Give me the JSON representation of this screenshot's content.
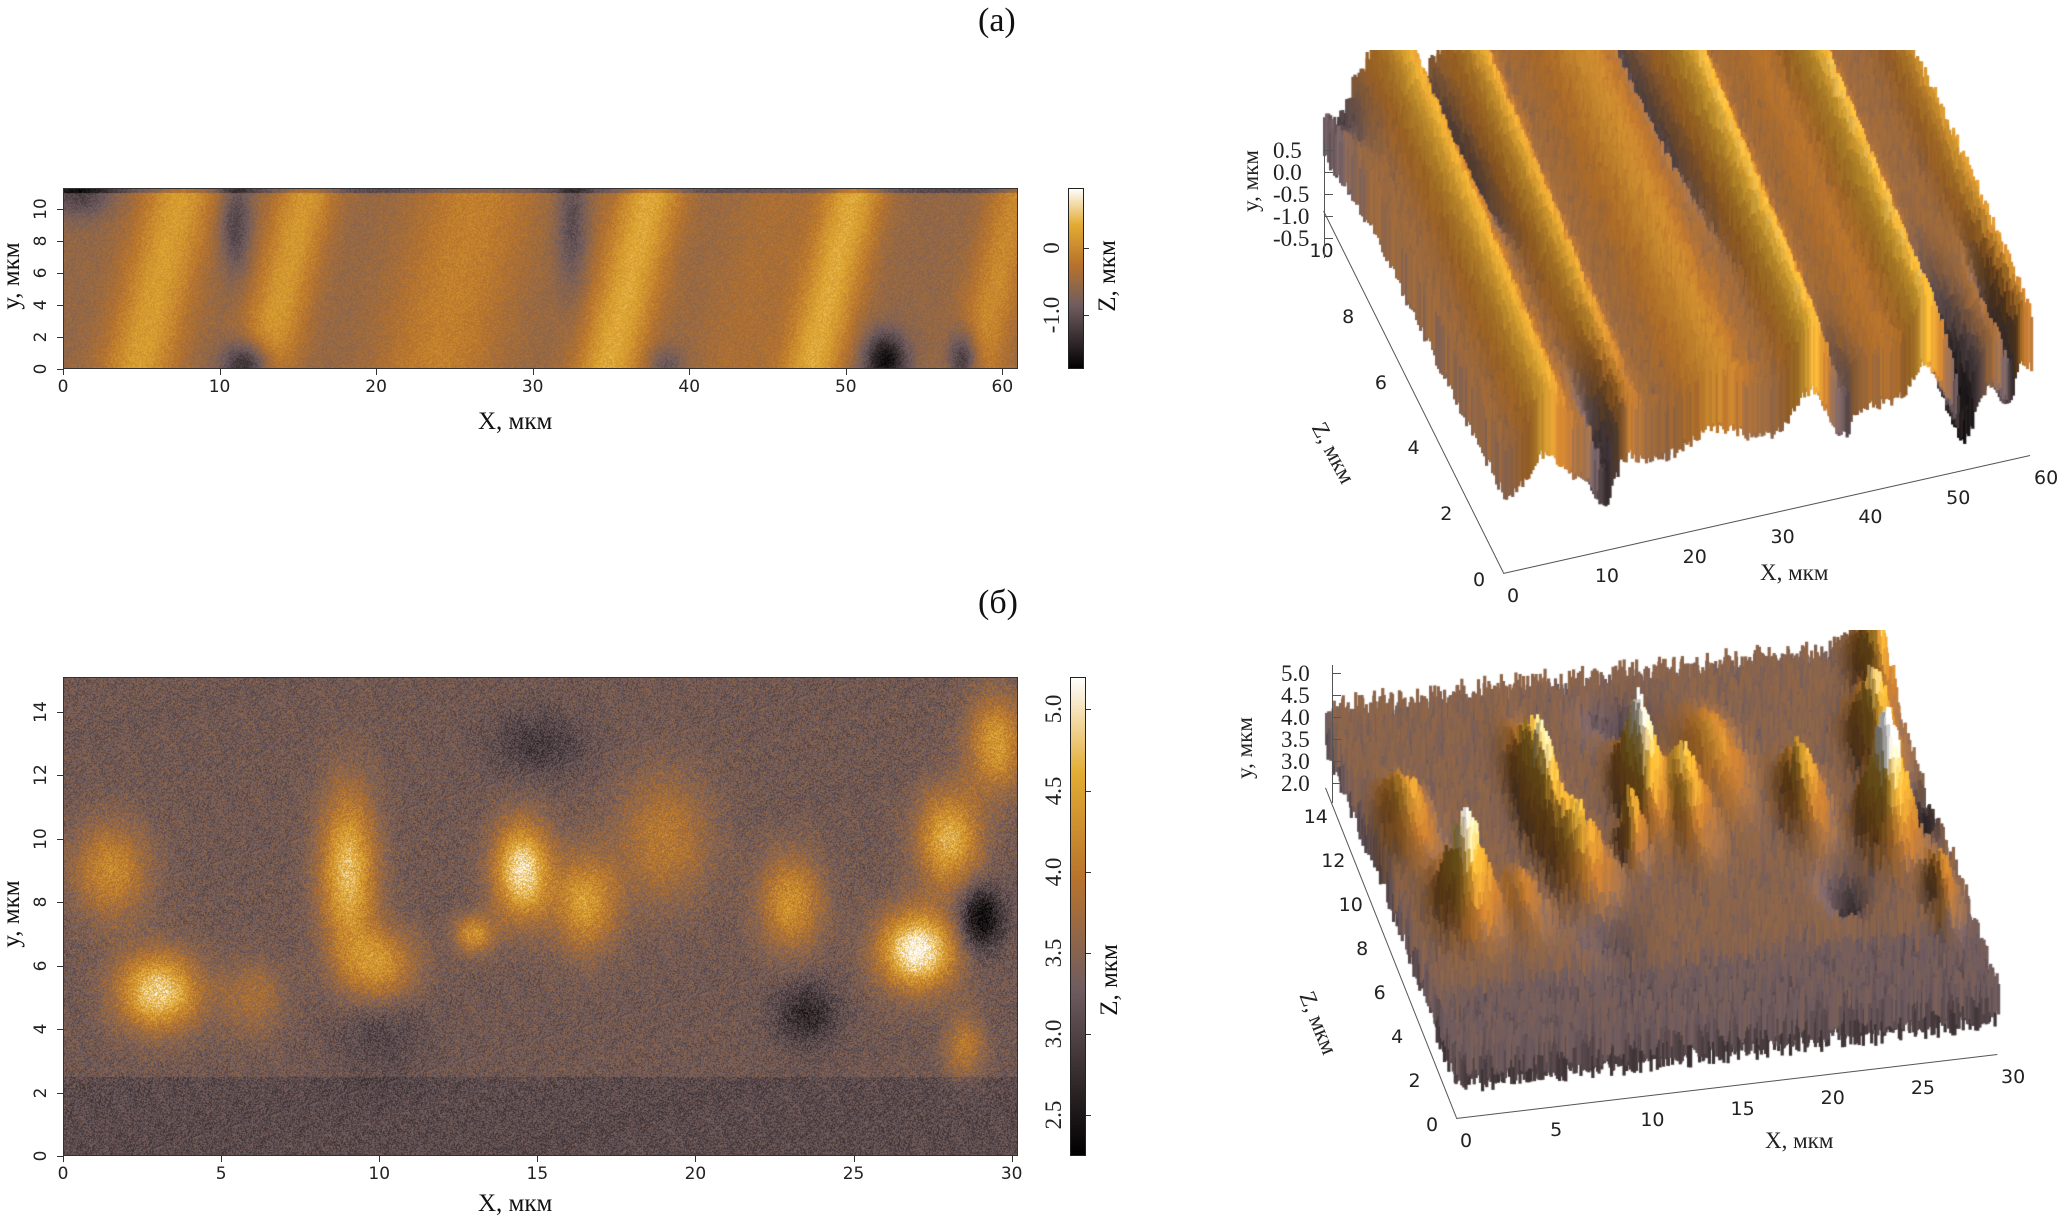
{
  "panels": {
    "a_label": "(а)",
    "b_label": "(б)"
  },
  "chart_data": [
    {
      "id": "a-map",
      "type": "heatmap",
      "xlabel": "X, мкм",
      "ylabel": "y, мкм",
      "colorbar_label": "Z, мкм",
      "xlim": [
        0,
        61
      ],
      "ylim": [
        0,
        11.3
      ],
      "xticks": [
        0,
        10,
        20,
        30,
        40,
        50,
        60
      ],
      "yticks": [
        0,
        2,
        4,
        6,
        8,
        10
      ],
      "colorbar_range": [
        -1.8,
        0.9
      ],
      "colorbar_ticks": [
        "0",
        "-1.0"
      ],
      "colorbar_tick_values": [
        0,
        -1.0
      ],
      "colormap": [
        "#000000",
        "#6f5c60",
        "#b8732c",
        "#e3ac33",
        "#ffffff"
      ]
    },
    {
      "id": "a-3d",
      "type": "surface",
      "xlabel": "X, мкм",
      "depth_label": "Z, мкм",
      "vlabel": "y, мкм",
      "xticks": [
        "0",
        "10",
        "20",
        "30",
        "40",
        "50",
        "60"
      ],
      "depth_ticks": [
        "0",
        "2",
        "4",
        "6",
        "8",
        "10"
      ],
      "vticks": [
        "0.5",
        "0.0",
        "-0.5",
        "-1.0",
        "-0.5"
      ]
    },
    {
      "id": "b-map",
      "type": "heatmap",
      "xlabel": "X, мкм",
      "ylabel": "y, мкм",
      "colorbar_label": "Z, мкм",
      "xlim": [
        0,
        30.2
      ],
      "ylim": [
        0,
        15.1
      ],
      "xticks": [
        0,
        5,
        10,
        15,
        20,
        25,
        30
      ],
      "yticks": [
        0,
        2,
        4,
        6,
        8,
        10,
        12,
        14
      ],
      "colorbar_range": [
        2.25,
        5.2
      ],
      "colorbar_ticks": [
        "5.0",
        "4.5",
        "4.0",
        "3.5",
        "3.0",
        "2.5"
      ],
      "colorbar_tick_values": [
        5.0,
        4.5,
        4.0,
        3.5,
        3.0,
        2.5
      ],
      "colormap": [
        "#000000",
        "#6f5c60",
        "#b8732c",
        "#e3ac33",
        "#ffffff"
      ]
    },
    {
      "id": "b-3d",
      "type": "surface",
      "xlabel": "X, мкм",
      "depth_label": "Z, мкм",
      "vlabel": "y, мкм",
      "xticks": [
        "0",
        "5",
        "10",
        "15",
        "20",
        "25",
        "30"
      ],
      "depth_ticks": [
        "0",
        "2",
        "4",
        "6",
        "8",
        "10",
        "12",
        "14"
      ],
      "vticks": [
        "5.0",
        "4.5",
        "4.0",
        "3.5",
        "3.0",
        "2.0"
      ]
    }
  ]
}
